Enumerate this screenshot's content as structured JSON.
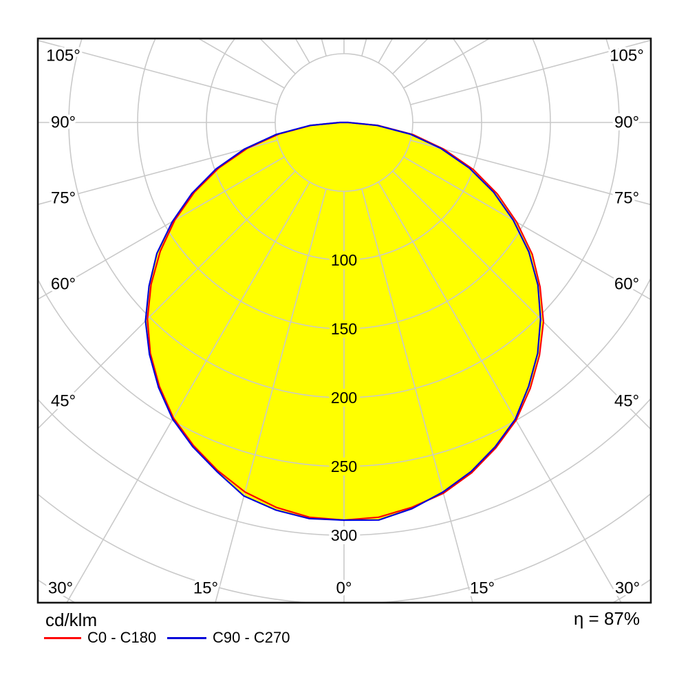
{
  "chart_data": {
    "type": "line",
    "subtype": "polar-luminous-intensity-distribution",
    "title": "",
    "unit": "cd/klm",
    "efficiency": "η = 87%",
    "colors": {
      "fill": "#ffff00",
      "grid": "#c9c9c9",
      "frame": "#141414",
      "c0": "#ff0000",
      "c90": "#0000d9"
    },
    "grid": {
      "ring_step": 50,
      "rings": [
        50,
        100,
        150,
        200,
        250,
        300,
        350,
        400
      ],
      "labeled_rings": [
        100,
        150,
        200,
        250,
        300
      ],
      "ray_step_deg": 15,
      "side_angle_labels_deg": [
        45,
        60,
        75,
        90,
        105
      ],
      "bottom_angle_labels_deg": [
        30,
        15,
        0,
        15,
        30
      ],
      "degree_suffix": "°"
    },
    "series": [
      {
        "name": "C0 - C180",
        "color": "#ff0000",
        "gamma_deg": [
          -90,
          -85,
          -80,
          -75,
          -70,
          -65,
          -60,
          -55,
          -50,
          -45,
          -40,
          -35,
          -30,
          -25,
          -20,
          -15,
          -10,
          -5,
          0,
          5,
          10,
          15,
          20,
          25,
          30,
          35,
          40,
          45,
          50,
          55,
          60,
          65,
          70,
          75,
          80,
          85,
          90
        ],
        "values": [
          3,
          24,
          48,
          73,
          97,
          120,
          142,
          163,
          183,
          202,
          219,
          234,
          248,
          259,
          269,
          278,
          284,
          288,
          289,
          288,
          284,
          279,
          271,
          261,
          250,
          236,
          221,
          205,
          186,
          167,
          145,
          123,
          100,
          75,
          51,
          25,
          3
        ]
      },
      {
        "name": "C90 - C270",
        "color": "#0000d9",
        "gamma_deg": [
          -90,
          -85,
          -80,
          -75,
          -70,
          -65,
          -60,
          -55,
          -50,
          -45,
          -40,
          -35,
          -30,
          -25,
          -20,
          -15,
          -10,
          -5,
          0,
          5,
          10,
          15,
          20,
          25,
          30,
          35,
          40,
          45,
          50,
          55,
          60,
          65,
          70,
          75,
          80,
          85,
          90
        ],
        "values": [
          3,
          25,
          50,
          75,
          99,
          122,
          144,
          166,
          185,
          204,
          220,
          235,
          249,
          260,
          270,
          281,
          286,
          289,
          289,
          290,
          285,
          278,
          270,
          260,
          249,
          234,
          219,
          202,
          184,
          164,
          142,
          120,
          97,
          73,
          49,
          24,
          3
        ]
      }
    ],
    "value_at_nadir": 289,
    "axis_note": "gamma angles in degrees from nadir, radial values in cd/klm"
  },
  "legend": {
    "unit": "cd/klm",
    "c0_label": "C0 - C180",
    "c90_label": "C90 - C270"
  },
  "efficiency_text": "η = 87%"
}
